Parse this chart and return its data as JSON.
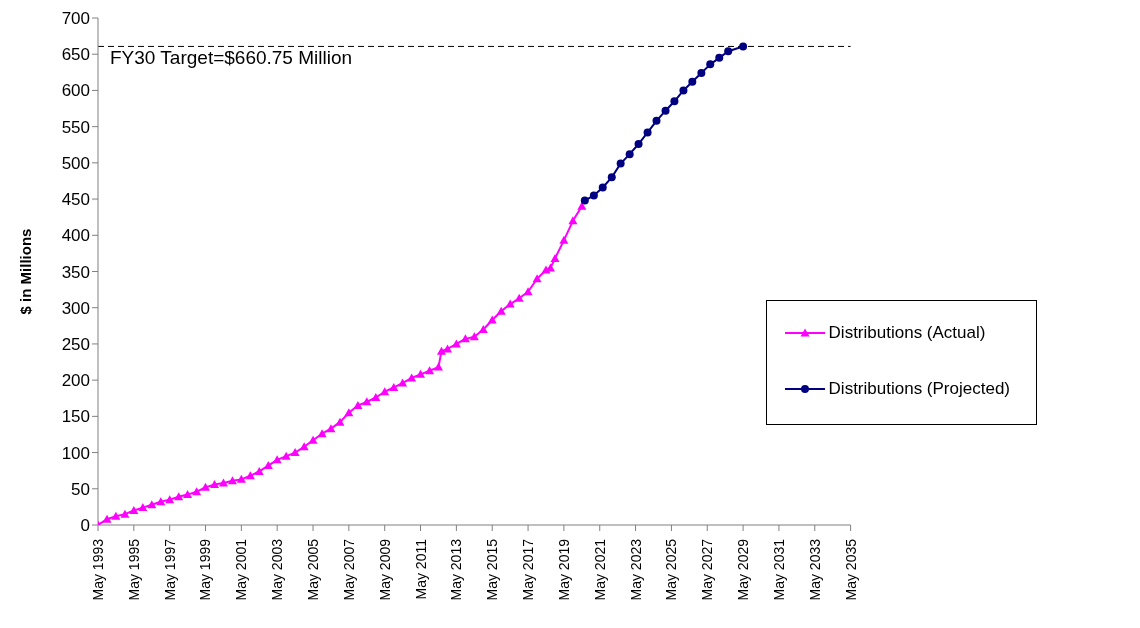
{
  "chart_data": {
    "type": "line",
    "ylabel": "$ in Millions",
    "series": [
      {
        "name": "Distributions (Actual)",
        "color": "#ff00ff",
        "marker": "triangle",
        "x": [
          "1993-05",
          "1993-11",
          "1994-05",
          "1994-11",
          "1995-05",
          "1995-11",
          "1996-05",
          "1996-11",
          "1997-05",
          "1997-11",
          "1998-05",
          "1998-11",
          "1999-05",
          "1999-11",
          "2000-05",
          "2000-11",
          "2001-05",
          "2001-11",
          "2002-05",
          "2002-11",
          "2003-05",
          "2003-11",
          "2004-05",
          "2004-11",
          "2005-05",
          "2005-11",
          "2006-05",
          "2006-11",
          "2007-05",
          "2007-11",
          "2008-05",
          "2008-11",
          "2009-05",
          "2009-11",
          "2010-05",
          "2010-11",
          "2011-05",
          "2011-11",
          "2012-05",
          "2012-07",
          "2012-11",
          "2013-05",
          "2013-11",
          "2014-05",
          "2014-11",
          "2015-05",
          "2015-11",
          "2016-05",
          "2016-11",
          "2017-05",
          "2017-11",
          "2018-05",
          "2018-08",
          "2018-11",
          "2019-05",
          "2019-11",
          "2020-05"
        ],
        "values": [
          0,
          8,
          12,
          15,
          20,
          24,
          28,
          32,
          35,
          39,
          42,
          46,
          52,
          56,
          58,
          61,
          63,
          68,
          74,
          82,
          90,
          95,
          100,
          108,
          117,
          126,
          133,
          142,
          155,
          165,
          170,
          176,
          184,
          190,
          196,
          203,
          208,
          213,
          218,
          240,
          243,
          250,
          257,
          260,
          270,
          283,
          295,
          305,
          313,
          322,
          340,
          352,
          355,
          368,
          393,
          420,
          440
        ]
      },
      {
        "name": "Distributions (Projected)",
        "color": "#000080",
        "marker": "circle",
        "x": [
          "2020-07",
          "2021-01",
          "2021-07",
          "2022-01",
          "2022-07",
          "2023-01",
          "2023-07",
          "2024-01",
          "2024-07",
          "2025-01",
          "2025-07",
          "2026-01",
          "2026-07",
          "2027-01",
          "2027-07",
          "2028-01",
          "2028-07",
          "2029-05"
        ],
        "values": [
          448,
          455,
          466,
          480,
          499,
          512,
          526,
          542,
          558,
          572,
          585,
          600,
          612,
          624,
          636,
          645,
          654,
          660.75
        ]
      }
    ],
    "xlim": [
      "1993-05",
      "2035-05"
    ],
    "xticks": [
      {
        "value": "1993-05",
        "label": "May 1993"
      },
      {
        "value": "1995-05",
        "label": "May 1995"
      },
      {
        "value": "1997-05",
        "label": "May 1997"
      },
      {
        "value": "1999-05",
        "label": "May 1999"
      },
      {
        "value": "2001-05",
        "label": "May 2001"
      },
      {
        "value": "2003-05",
        "label": "May 2003"
      },
      {
        "value": "2005-05",
        "label": "May 2005"
      },
      {
        "value": "2007-05",
        "label": "May 2007"
      },
      {
        "value": "2009-05",
        "label": "May 2009"
      },
      {
        "value": "2011-05",
        "label": "May 2011"
      },
      {
        "value": "2013-05",
        "label": "May 2013"
      },
      {
        "value": "2015-05",
        "label": "May 2015"
      },
      {
        "value": "2017-05",
        "label": "May 2017"
      },
      {
        "value": "2019-05",
        "label": "May 2019"
      },
      {
        "value": "2021-05",
        "label": "May 2021"
      },
      {
        "value": "2023-05",
        "label": "May 2023"
      },
      {
        "value": "2025-05",
        "label": "May 2025"
      },
      {
        "value": "2027-05",
        "label": "May 2027"
      },
      {
        "value": "2029-05",
        "label": "May 2029"
      },
      {
        "value": "2031-05",
        "label": "May 2031"
      },
      {
        "value": "2033-05",
        "label": "May 2033"
      },
      {
        "value": "2035-05",
        "label": "May 2035"
      }
    ],
    "ylim": [
      0,
      700
    ],
    "yticks": [
      0,
      50,
      100,
      150,
      200,
      250,
      300,
      350,
      400,
      450,
      500,
      550,
      600,
      650,
      700
    ],
    "ref_lines": [
      {
        "axis": "y",
        "value": 660.75,
        "label": "FY30 Target=$660.75 Million",
        "color": "#000000",
        "line_style": "dashed"
      }
    ],
    "grid": false,
    "legend": "bottom right"
  }
}
